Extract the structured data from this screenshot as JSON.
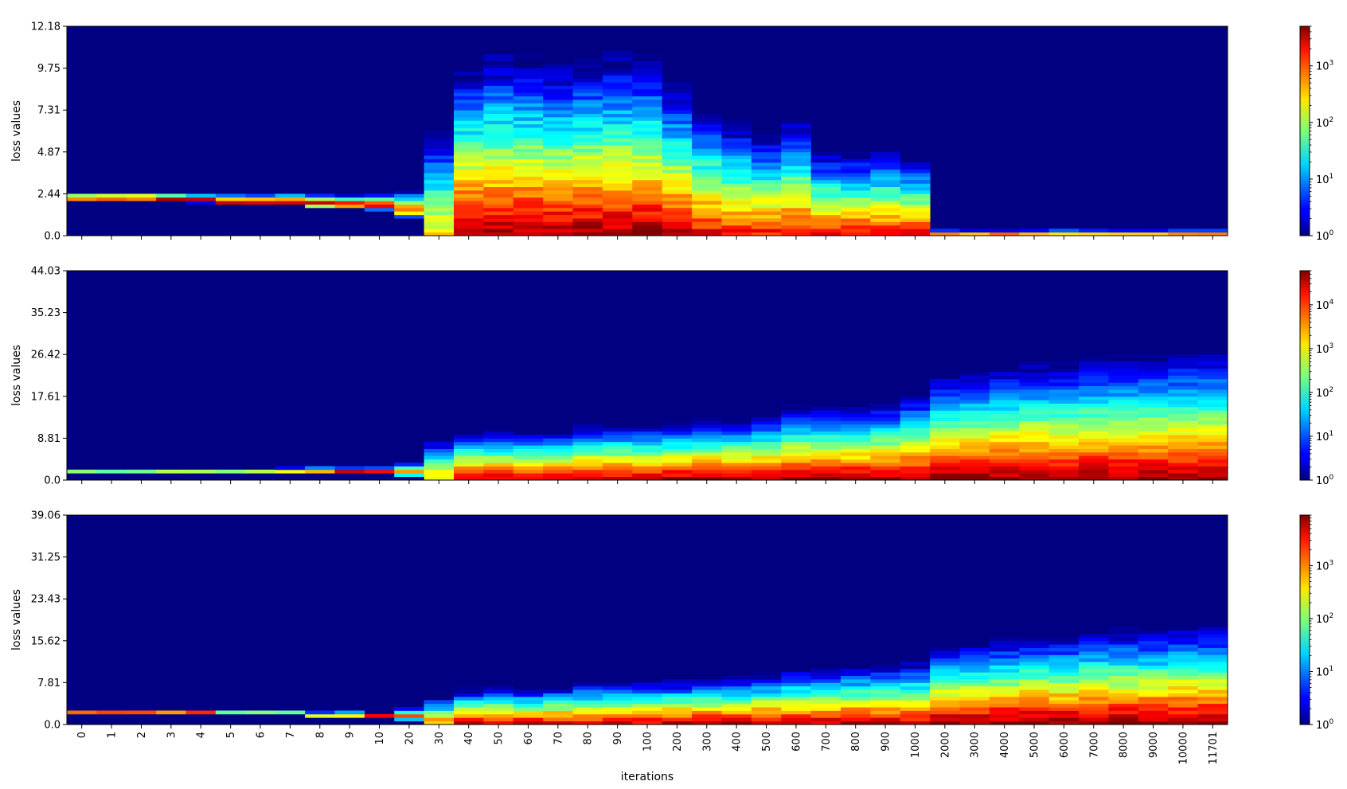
{
  "chart_data": [
    {
      "type": "heatmap",
      "title": "",
      "ylabel": "loss values",
      "xlabel": "",
      "categories": [
        "0",
        "1",
        "2",
        "3",
        "4",
        "5",
        "6",
        "7",
        "8",
        "9",
        "10",
        "20",
        "30",
        "40",
        "50",
        "60",
        "70",
        "80",
        "90",
        "100",
        "200",
        "300",
        "400",
        "500",
        "600",
        "700",
        "800",
        "900",
        "1000",
        "2000",
        "3000",
        "4000",
        "5000",
        "6000",
        "7000",
        "8000",
        "9000",
        "10000",
        "11701"
      ],
      "yticks": [
        "0.0",
        "2.44",
        "4.87",
        "7.31",
        "9.75",
        "12.18"
      ],
      "ylim": [
        0,
        12.18
      ],
      "colorbar": {
        "scale": "log",
        "ticks": [
          "10^0",
          "10^1",
          "10^2",
          "10^3"
        ],
        "range": [
          1,
          5000
        ]
      },
      "spread": [
        0.2,
        0.2,
        0.2,
        0.22,
        0.25,
        0.3,
        0.3,
        0.32,
        0.35,
        0.38,
        0.45,
        0.9,
        6.5,
        6.8,
        7.4,
        7.2,
        7.0,
        7.2,
        7.4,
        7.3,
        6.4,
        5.8,
        5.2,
        4.8,
        5.2,
        3.8,
        3.7,
        3.8,
        3.5,
        0.25,
        0.25,
        0.25,
        0.25,
        0.25,
        0.25,
        0.25,
        0.25,
        0.25,
        0.25
      ],
      "center": [
        2.2,
        2.2,
        2.2,
        2.15,
        2.1,
        2.0,
        2.0,
        2.0,
        1.9,
        1.85,
        1.8,
        1.6,
        0.2,
        0.15,
        0.12,
        0.12,
        0.1,
        0.1,
        0.1,
        0.1,
        0.08,
        0.06,
        0.05,
        0.05,
        0.05,
        0.04,
        0.04,
        0.03,
        0.03,
        0.0,
        0.0,
        0.0,
        0.0,
        0.0,
        0.0,
        0.0,
        0.0,
        0.0,
        0.0
      ],
      "peak": [
        3.7,
        3.7,
        3.7,
        3.7,
        3.7,
        3.7,
        3.7,
        3.7,
        3.7,
        3.7,
        3.5,
        2.9,
        2.4,
        3.6,
        3.6,
        3.6,
        3.6,
        3.6,
        3.6,
        3.6,
        3.5,
        3.3,
        3.2,
        3.2,
        3.3,
        3.3,
        3.3,
        3.3,
        3.3,
        3.7,
        3.7,
        3.7,
        3.7,
        3.7,
        3.7,
        3.7,
        3.7,
        3.7,
        3.7
      ]
    },
    {
      "type": "heatmap",
      "title": "",
      "ylabel": "loss values",
      "xlabel": "",
      "categories": [
        "0",
        "1",
        "2",
        "3",
        "4",
        "5",
        "6",
        "7",
        "8",
        "9",
        "10",
        "20",
        "30",
        "40",
        "50",
        "60",
        "70",
        "80",
        "90",
        "100",
        "200",
        "300",
        "400",
        "500",
        "600",
        "700",
        "800",
        "900",
        "1000",
        "2000",
        "3000",
        "4000",
        "5000",
        "6000",
        "7000",
        "8000",
        "9000",
        "10000",
        "11701"
      ],
      "yticks": [
        "0.0",
        "8.81",
        "17.61",
        "26.42",
        "35.23",
        "44.03"
      ],
      "ylim": [
        0,
        44.03
      ],
      "colorbar": {
        "scale": "log",
        "ticks": [
          "10^0",
          "10^1",
          "10^2",
          "10^3",
          "10^4"
        ],
        "range": [
          1,
          60000
        ]
      },
      "spread": [
        0.3,
        0.3,
        0.3,
        0.3,
        0.3,
        0.3,
        0.3,
        0.35,
        0.4,
        0.45,
        0.55,
        1.4,
        5.5,
        5.5,
        6.0,
        6.0,
        6.0,
        6.5,
        6.5,
        6.5,
        6.5,
        7.0,
        7.0,
        7.5,
        8.5,
        8.5,
        8.5,
        9.0,
        10.0,
        12.0,
        12.5,
        13.0,
        13.5,
        13.5,
        14.0,
        14.0,
        14.0,
        14.5,
        14.5
      ],
      "center": [
        2.0,
        2.0,
        2.0,
        2.0,
        2.0,
        2.0,
        2.0,
        2.0,
        2.0,
        1.9,
        1.8,
        1.8,
        1.5,
        0.5,
        0.3,
        0.3,
        0.3,
        0.3,
        0.3,
        0.3,
        0.3,
        0.3,
        0.3,
        0.3,
        0.3,
        0.3,
        0.3,
        0.3,
        0.3,
        0.2,
        0.2,
        0.2,
        0.2,
        0.2,
        0.2,
        0.2,
        0.2,
        0.2,
        0.2
      ],
      "peak": [
        4.7,
        4.7,
        4.7,
        4.7,
        4.7,
        4.7,
        4.7,
        4.7,
        4.7,
        4.7,
        4.5,
        3.6,
        3.2,
        4.4,
        4.4,
        4.4,
        4.4,
        4.5,
        4.5,
        4.5,
        4.6,
        4.6,
        4.6,
        4.6,
        4.6,
        4.6,
        4.6,
        4.6,
        4.6,
        4.7,
        4.7,
        4.7,
        4.7,
        4.7,
        4.7,
        4.7,
        4.7,
        4.7,
        4.7
      ]
    },
    {
      "type": "heatmap",
      "title": "",
      "ylabel": "loss values",
      "xlabel": "iterations",
      "categories": [
        "0",
        "1",
        "2",
        "3",
        "4",
        "5",
        "6",
        "7",
        "8",
        "9",
        "10",
        "20",
        "30",
        "40",
        "50",
        "60",
        "70",
        "80",
        "90",
        "100",
        "200",
        "300",
        "400",
        "500",
        "600",
        "700",
        "800",
        "900",
        "1000",
        "2000",
        "3000",
        "4000",
        "5000",
        "6000",
        "7000",
        "8000",
        "9000",
        "10000",
        "11701"
      ],
      "yticks": [
        "0.0",
        "7.81",
        "15.62",
        "23.43",
        "31.25",
        "39.06"
      ],
      "ylim": [
        0,
        39.06
      ],
      "colorbar": {
        "scale": "log",
        "ticks": [
          "10^0",
          "10^1",
          "10^2",
          "10^3"
        ],
        "range": [
          1,
          9000
        ]
      },
      "spread": [
        0.25,
        0.25,
        0.25,
        0.25,
        0.25,
        0.35,
        0.35,
        0.35,
        0.4,
        0.45,
        0.5,
        1.3,
        4.0,
        4.5,
        4.8,
        4.8,
        5.0,
        5.5,
        5.5,
        5.5,
        5.5,
        6.0,
        6.0,
        6.5,
        7.0,
        7.0,
        7.5,
        7.5,
        8.0,
        9.5,
        10.0,
        10.5,
        11.0,
        11.0,
        11.5,
        11.5,
        11.5,
        12.0,
        12.0
      ],
      "center": [
        2.2,
        2.2,
        2.2,
        2.2,
        2.2,
        2.0,
        2.0,
        2.0,
        1.8,
        1.8,
        1.6,
        1.6,
        0.8,
        0.3,
        0.25,
        0.25,
        0.25,
        0.25,
        0.25,
        0.25,
        0.25,
        0.25,
        0.25,
        0.25,
        0.25,
        0.25,
        0.25,
        0.25,
        0.25,
        0.2,
        0.2,
        0.2,
        0.2,
        0.2,
        0.2,
        0.2,
        0.2,
        0.2,
        0.2
      ],
      "peak": [
        3.9,
        3.9,
        3.9,
        3.9,
        3.9,
        3.8,
        3.8,
        3.8,
        3.7,
        3.7,
        3.6,
        3.1,
        2.8,
        3.6,
        3.6,
        3.6,
        3.6,
        3.6,
        3.6,
        3.6,
        3.7,
        3.7,
        3.7,
        3.7,
        3.7,
        3.7,
        3.7,
        3.7,
        3.7,
        3.9,
        3.9,
        3.9,
        3.9,
        3.9,
        3.9,
        3.9,
        3.9,
        3.9,
        3.9
      ]
    }
  ]
}
